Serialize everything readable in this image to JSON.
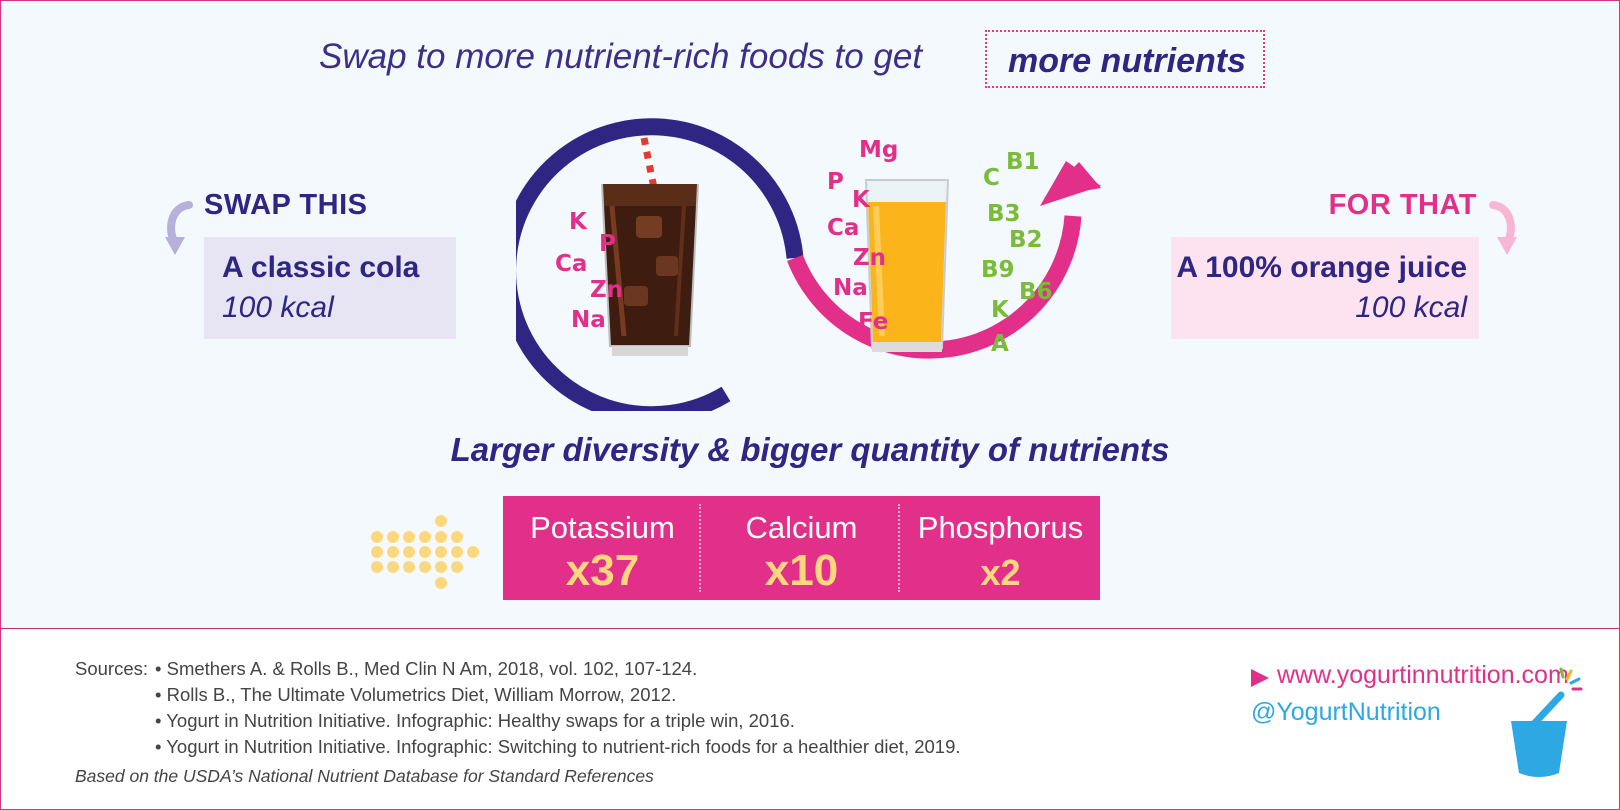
{
  "headline": {
    "text": "Swap to more nutrient-rich foods to get",
    "highlight": "more nutrients"
  },
  "swap": {
    "title": "SWAP THIS",
    "item": "A classic cola",
    "kcal": "100 kcal",
    "nutrients": [
      "K",
      "P",
      "Ca",
      "Zn",
      "Na"
    ]
  },
  "for": {
    "title": "FOR THAT",
    "item": "A 100% orange juice",
    "kcal": "100 kcal",
    "nutrients_pink": [
      "Mg",
      "P",
      "K",
      "Ca",
      "Zn",
      "Na",
      "Fe"
    ],
    "nutrients_green": [
      "C",
      "B1",
      "B3",
      "B2",
      "B9",
      "B6",
      "K",
      "A"
    ]
  },
  "subheading": "Larger diversity & bigger quantity of nutrients",
  "comparison": [
    {
      "name": "Potassium",
      "multiplier": "x37"
    },
    {
      "name": "Calcium",
      "multiplier": "x10"
    },
    {
      "name": "Phosphorus",
      "multiplier": "x2"
    }
  ],
  "footer": {
    "sources_label": "Sources:",
    "sources": [
      "• Smethers A. & Rolls B., Med Clin N Am, 2018, vol. 102, 107-124.",
      "• Rolls B., The Ultimate Volumetrics Diet, William Morrow, 2012.",
      "• Yogurt in Nutrition Initiative. Infographic: Healthy swaps for a triple win, 2016.",
      "• Yogurt in Nutrition Initiative. Infographic: Switching to nutrient-rich foods for a healthier diet, 2019."
    ],
    "based_on": "Based on the USDA’s National Nutrient Database for Standard References",
    "website": "www.yogurtinnutrition.com",
    "handle": "@YogurtNutrition"
  },
  "colors": {
    "navy": "#2f2583",
    "pink": "#e2308a",
    "green": "#7bbb3a",
    "gold": "#fcd77e",
    "blue": "#2da8e3",
    "background": "#f3f9fc"
  }
}
